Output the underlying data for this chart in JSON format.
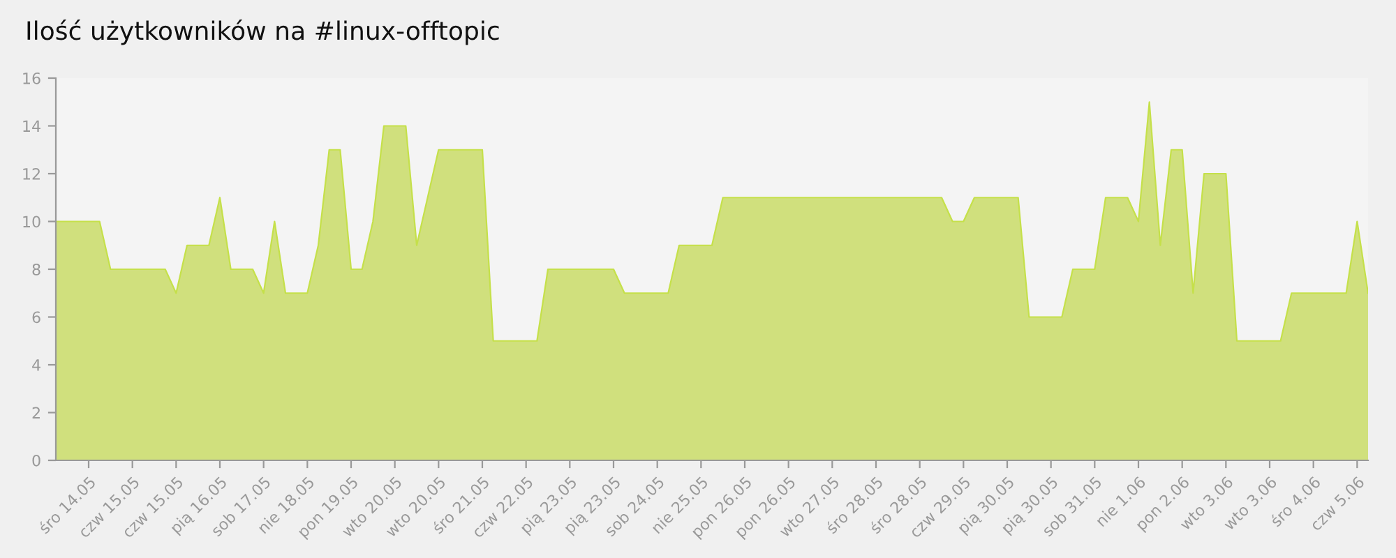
{
  "chart_data": {
    "type": "area",
    "title": "Ilość użytkowników na #linux-offtopic",
    "categories": [
      null,
      null,
      null,
      "śro 14.05",
      null,
      null,
      null,
      "czw 15.05",
      null,
      null,
      null,
      "czw 15.05",
      null,
      null,
      null,
      "pią 16.05",
      null,
      null,
      null,
      "sob 17.05",
      null,
      null,
      null,
      "nie 18.05",
      null,
      null,
      null,
      "pon 19.05",
      null,
      null,
      null,
      "wto 20.05",
      null,
      null,
      null,
      "wto 20.05",
      null,
      null,
      null,
      "śro 21.05",
      null,
      null,
      null,
      "czw 22.05",
      null,
      null,
      null,
      "pią 23.05",
      null,
      null,
      null,
      "pią 23.05",
      null,
      null,
      null,
      "sob 24.05",
      null,
      null,
      null,
      "nie 25.05",
      null,
      null,
      null,
      "pon 26.05",
      null,
      null,
      null,
      "pon 26.05",
      null,
      null,
      null,
      "wto 27.05",
      null,
      null,
      null,
      "śro 28.05",
      null,
      null,
      null,
      "śro 28.05",
      null,
      null,
      null,
      "czw 29.05",
      null,
      null,
      null,
      "pią 30.05",
      null,
      null,
      null,
      "pią 30.05",
      null,
      null,
      null,
      "sob 31.05",
      null,
      null,
      null,
      "nie 1.06",
      null,
      null,
      null,
      "pon 2.06",
      null,
      null,
      null,
      "wto 3.06",
      null,
      null,
      null,
      "wto 3.06",
      null,
      null,
      null,
      "śro 4.06",
      null,
      null,
      null,
      "czw 5.06",
      null
    ],
    "series": [
      {
        "color": "#c5e04a",
        "values": [
          10,
          10,
          10,
          10,
          10,
          8,
          8,
          8,
          8,
          8,
          8,
          7,
          9,
          9,
          9,
          11,
          8,
          8,
          8,
          7,
          10,
          7,
          7,
          7,
          9,
          13,
          13,
          8,
          8,
          10,
          14,
          14,
          14,
          9,
          11,
          13,
          13,
          13,
          13,
          13,
          5,
          5,
          5,
          5,
          5,
          8,
          8,
          8,
          8,
          8,
          8,
          8,
          7,
          7,
          7,
          7,
          7,
          9,
          9,
          9,
          9,
          11,
          11,
          11,
          11,
          11,
          11,
          11,
          11,
          11,
          11,
          11,
          11,
          11,
          11,
          11,
          11,
          11,
          11,
          11,
          11,
          11,
          10,
          10,
          11,
          11,
          11,
          11,
          11,
          6,
          6,
          6,
          6,
          8,
          8,
          8,
          11,
          11,
          11,
          10,
          15,
          9,
          13,
          13,
          7,
          12,
          12,
          12,
          5,
          5,
          5,
          5,
          5,
          7,
          7,
          7,
          7,
          7,
          7,
          10,
          7
        ]
      }
    ],
    "ylim": [
      0,
      16
    ],
    "yticks": [
      0,
      2,
      4,
      6,
      8,
      10,
      12,
      14,
      16
    ],
    "grid": false,
    "legend": false
  }
}
